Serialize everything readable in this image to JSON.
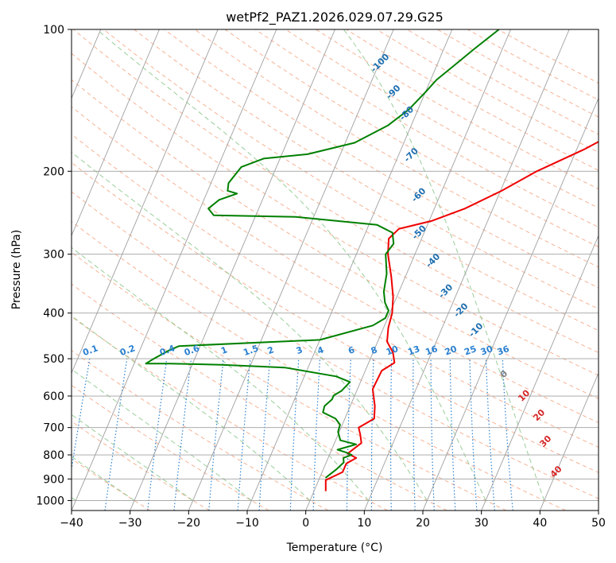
{
  "chart_data": {
    "type": "line",
    "title": "wetPf2_PAZ1.2026.029.07.29.G25",
    "xlabel": "Temperature (°C)",
    "ylabel": "Pressure (hPa)",
    "xlim": [
      -40,
      50
    ],
    "ylim": [
      1050,
      100
    ],
    "y_scale": "log",
    "grid": true,
    "x_ticks": [
      "−40",
      "−30",
      "−20",
      "−10",
      "0",
      "10",
      "20",
      "30",
      "40",
      "50"
    ],
    "y_ticks": [
      {
        "p": 100,
        "label": "100"
      },
      {
        "p": 200,
        "label": "200"
      },
      {
        "p": 300,
        "label": "300"
      },
      {
        "p": 400,
        "label": "400"
      },
      {
        "p": 500,
        "label": "500"
      },
      {
        "p": 600,
        "label": "600"
      },
      {
        "p": 700,
        "label": "700"
      },
      {
        "p": 800,
        "label": "800"
      },
      {
        "p": 900,
        "label": "900"
      },
      {
        "p": 1000,
        "label": "1000"
      }
    ],
    "series": [
      {
        "color": "#ee0000",
        "points": [
          [
            2.0,
            955
          ],
          [
            1.6,
            930
          ],
          [
            1.2,
            905
          ],
          [
            3.5,
            870
          ],
          [
            3.5,
            835
          ],
          [
            4.8,
            812
          ],
          [
            3.0,
            795
          ],
          [
            4.6,
            755
          ],
          [
            3.8,
            725
          ],
          [
            3.0,
            700
          ],
          [
            5.0,
            670
          ],
          [
            4.2,
            630
          ],
          [
            2.6,
            580
          ],
          [
            2.8,
            530
          ],
          [
            4.4,
            510
          ],
          [
            3.4,
            485
          ],
          [
            1.6,
            460
          ],
          [
            0.8,
            430
          ],
          [
            0.4,
            400
          ],
          [
            -0.6,
            370
          ],
          [
            -2.4,
            335
          ],
          [
            -4.6,
            300
          ],
          [
            -5.6,
            278
          ],
          [
            -4.6,
            265
          ],
          [
            0.4,
            255
          ],
          [
            5.2,
            240
          ],
          [
            10.2,
            220
          ],
          [
            14.8,
            200
          ],
          [
            21.2,
            180
          ],
          [
            27.2,
            160
          ],
          [
            33.0,
            140
          ],
          [
            35.8,
            130
          ],
          [
            38.6,
            120
          ],
          [
            44.6,
            105
          ],
          [
            46.6,
            100
          ]
        ]
      },
      {
        "color": "#008000",
        "points": [
          [
            1.0,
            895
          ],
          [
            2.2,
            860
          ],
          [
            3.0,
            830
          ],
          [
            2.6,
            812
          ],
          [
            3.8,
            800
          ],
          [
            2.6,
            790
          ],
          [
            1.0,
            780
          ],
          [
            3.8,
            760
          ],
          [
            0.8,
            745
          ],
          [
            -0.2,
            715
          ],
          [
            -0.4,
            690
          ],
          [
            -1.6,
            670
          ],
          [
            -4.2,
            650
          ],
          [
            -4.4,
            630
          ],
          [
            -3.6,
            610
          ],
          [
            -3.6,
            598
          ],
          [
            -2.6,
            585
          ],
          [
            -1.8,
            560
          ],
          [
            -4.6,
            545
          ],
          [
            -14.0,
            522
          ],
          [
            -25.0,
            515
          ],
          [
            -34.0,
            512
          ],
          [
            -38.0,
            512
          ],
          [
            -37.0,
            500
          ],
          [
            -35.0,
            480
          ],
          [
            -33.6,
            470
          ],
          [
            -10.0,
            456
          ],
          [
            -2.0,
            425
          ],
          [
            -0.4,
            410
          ],
          [
            -0.4,
            395
          ],
          [
            -1.6,
            380
          ],
          [
            -2.6,
            360
          ],
          [
            -3.4,
            330
          ],
          [
            -5.0,
            300
          ],
          [
            -4.4,
            285
          ],
          [
            -5.4,
            270
          ],
          [
            -8.6,
            260
          ],
          [
            -23.0,
            250
          ],
          [
            -37.2,
            248
          ],
          [
            -38.6,
            240
          ],
          [
            -37.4,
            230
          ],
          [
            -34.8,
            223
          ],
          [
            -36.6,
            220
          ],
          [
            -37.0,
            212
          ],
          [
            -36.0,
            196
          ],
          [
            -32.8,
            188
          ],
          [
            -25.6,
            184
          ],
          [
            -18.4,
            174
          ],
          [
            -14.0,
            160
          ],
          [
            -11.6,
            148
          ],
          [
            -10.0,
            136
          ],
          [
            -9.0,
            128
          ],
          [
            -7.2,
            120
          ],
          [
            -4.8,
            110
          ],
          [
            -2.0,
            100
          ]
        ]
      }
    ],
    "dry_adiabat_labels": [
      "-100",
      "-90",
      "-80",
      "-70",
      "-60",
      "-50",
      "-40",
      "-30",
      "-20",
      "-10",
      "0",
      "10",
      "20",
      "30",
      "40"
    ],
    "mixing_ratio_labels": [
      "0.1",
      "0.2",
      "0.4",
      "0.6",
      "1",
      "1.5",
      "2",
      "3",
      "4",
      "6",
      "8",
      "10",
      "13",
      "16",
      "20",
      "25",
      "30",
      "36"
    ],
    "mixing_ratio_values": [
      0.1,
      0.2,
      0.4,
      0.6,
      1,
      1.5,
      2,
      3,
      4,
      6,
      8,
      10,
      13,
      16,
      20,
      25,
      30,
      36
    ],
    "colors": {
      "dry_adiabat": "#f4a582",
      "moist_adiabat": "#8fc98f",
      "mixing_ratio": "#2a80d0",
      "isotherm": "#a0a0a0",
      "isobar": "#a0a0a0",
      "cold_label": "#1f6fb0",
      "warm_label": "#d62728",
      "zero_label": "#808080"
    }
  }
}
